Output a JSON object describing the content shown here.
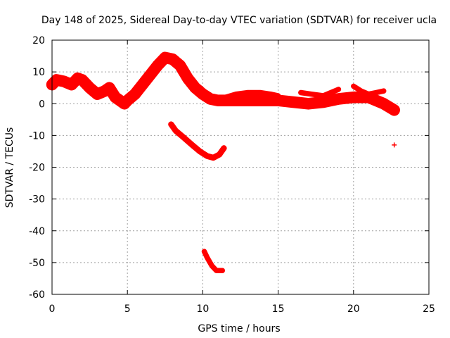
{
  "chart_data": {
    "type": "scatter",
    "title": "Day 148 of 2025, Sidereal Day-to-day VTEC variation (SDTVAR) for receiver ucla",
    "xlabel": "GPS time / hours",
    "ylabel": "SDTVAR / TECUs",
    "xlim": [
      0,
      25
    ],
    "ylim": [
      -60,
      20
    ],
    "xticks": [
      0,
      5,
      10,
      15,
      20,
      25
    ],
    "xtick_labels": [
      "0",
      "5",
      "10",
      "15",
      "20",
      "25"
    ],
    "yticks": [
      20,
      10,
      0,
      -10,
      -20,
      -30,
      -40,
      -50,
      -60
    ],
    "ytick_labels": [
      "20",
      "10",
      "0",
      "-10",
      "-20",
      "-30",
      "-40",
      "-50",
      "-60"
    ],
    "grid": true,
    "marker": "+",
    "color": "#ff0000",
    "series": [
      {
        "name": "main-trace",
        "points": [
          [
            0,
            6
          ],
          [
            0.3,
            7.5
          ],
          [
            0.8,
            7
          ],
          [
            1.3,
            6
          ],
          [
            1.7,
            8
          ],
          [
            2.0,
            7.5
          ],
          [
            2.5,
            5
          ],
          [
            3.0,
            3
          ],
          [
            3.5,
            4
          ],
          [
            3.8,
            5
          ],
          [
            4.2,
            2
          ],
          [
            4.5,
            1
          ],
          [
            4.8,
            0
          ],
          [
            5.0,
            1
          ],
          [
            5.5,
            3
          ],
          [
            6.0,
            6
          ],
          [
            6.5,
            9
          ],
          [
            7.0,
            12
          ],
          [
            7.5,
            14.5
          ],
          [
            8.0,
            14
          ],
          [
            8.5,
            12
          ],
          [
            9.0,
            8
          ],
          [
            9.5,
            5
          ],
          [
            10.0,
            3
          ],
          [
            10.5,
            1.5
          ],
          [
            11.0,
            1
          ],
          [
            11.5,
            1
          ],
          [
            12.0,
            1
          ],
          [
            13.0,
            1
          ],
          [
            14.0,
            1
          ],
          [
            15.0,
            1
          ],
          [
            16.0,
            0.5
          ],
          [
            17.0,
            0
          ],
          [
            18.0,
            0.5
          ],
          [
            19.0,
            1.5
          ],
          [
            20.0,
            2
          ],
          [
            21.0,
            2
          ],
          [
            22.0,
            0
          ],
          [
            22.7,
            -2
          ]
        ],
        "band": 1.5
      },
      {
        "name": "upper-arc-11-15",
        "points": [
          [
            11.5,
            2
          ],
          [
            12.2,
            3
          ],
          [
            13.0,
            3.5
          ],
          [
            13.8,
            3.5
          ],
          [
            14.5,
            3
          ],
          [
            15.0,
            2.5
          ]
        ],
        "band": 0.5
      },
      {
        "name": "upper-arc-16-19",
        "points": [
          [
            16.5,
            3.5
          ],
          [
            17.2,
            3
          ],
          [
            18.0,
            2.5
          ],
          [
            18.5,
            3.5
          ],
          [
            19.0,
            4.5
          ]
        ],
        "band": 0.5
      },
      {
        "name": "upper-arc-20-22",
        "points": [
          [
            20.0,
            5.5
          ],
          [
            20.5,
            4
          ],
          [
            21.0,
            3
          ],
          [
            21.5,
            3.5
          ],
          [
            22.0,
            4
          ]
        ],
        "band": 0.5
      },
      {
        "name": "descending-arc",
        "points": [
          [
            7.9,
            -6.5
          ],
          [
            8.2,
            -8.5
          ],
          [
            8.7,
            -10.5
          ],
          [
            9.3,
            -13
          ],
          [
            9.8,
            -15
          ],
          [
            10.3,
            -16.5
          ],
          [
            10.7,
            -17
          ],
          [
            11.1,
            -16
          ],
          [
            11.4,
            -14
          ]
        ],
        "band": 0.6
      },
      {
        "name": "low-arc",
        "points": [
          [
            10.1,
            -46.5
          ],
          [
            10.3,
            -48.5
          ],
          [
            10.6,
            -51
          ],
          [
            10.9,
            -52.5
          ],
          [
            11.3,
            -52.5
          ]
        ],
        "band": 0.5
      },
      {
        "name": "isolated-point",
        "points": [
          [
            22.7,
            -13
          ]
        ],
        "band": 0
      }
    ]
  }
}
